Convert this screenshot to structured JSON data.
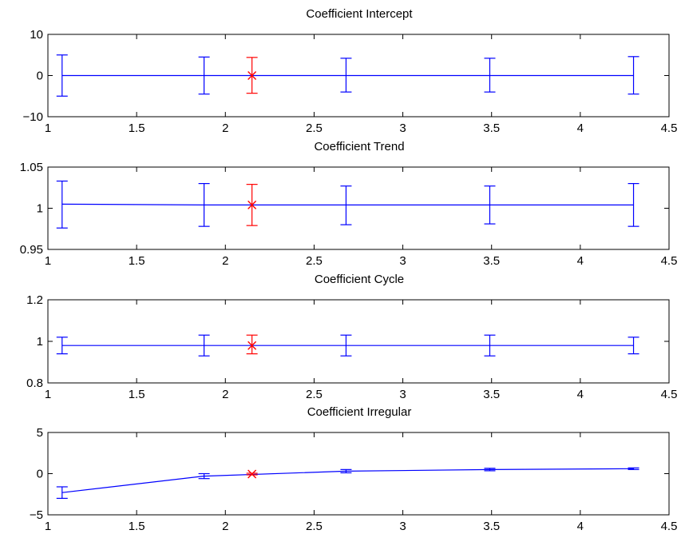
{
  "colors": {
    "series": "#0000ff",
    "highlight": "#ff0000",
    "axes": "#000000"
  },
  "chart_data": [
    {
      "type": "line",
      "title": "Coefficient Intercept",
      "xlim": [
        1,
        4.5
      ],
      "ylim": [
        -10,
        10
      ],
      "x_ticks": [
        "1",
        "1.5",
        "2",
        "2.5",
        "3",
        "3.5",
        "4",
        "4.5"
      ],
      "y_ticks": [
        "−10",
        "0",
        "10"
      ],
      "y_tick_values": [
        -10,
        0,
        10
      ],
      "grid": false,
      "series": [
        {
          "x": [
            1.08,
            1.88,
            2.68,
            3.49,
            4.3
          ],
          "y": [
            0,
            0,
            0,
            0,
            0
          ],
          "lower": [
            -5.0,
            -4.5,
            -4.0,
            -4.0,
            -4.5
          ],
          "upper": [
            5.0,
            4.5,
            4.2,
            4.2,
            4.6
          ]
        }
      ],
      "highlight": {
        "x": 2.15,
        "y": 0,
        "lower": -4.3,
        "upper": 4.4,
        "marker": "x"
      }
    },
    {
      "type": "line",
      "title": "Coefficient Trend",
      "xlim": [
        1,
        4.5
      ],
      "ylim": [
        0.95,
        1.05
      ],
      "x_ticks": [
        "1",
        "1.5",
        "2",
        "2.5",
        "3",
        "3.5",
        "4",
        "4.5"
      ],
      "y_ticks": [
        "0.95",
        "1",
        "1.05"
      ],
      "y_tick_values": [
        0.95,
        1.0,
        1.05
      ],
      "grid": false,
      "series": [
        {
          "x": [
            1.08,
            1.88,
            2.68,
            3.49,
            4.3
          ],
          "y": [
            1.005,
            1.004,
            1.004,
            1.004,
            1.004
          ],
          "lower": [
            0.976,
            0.978,
            0.98,
            0.981,
            0.978
          ],
          "upper": [
            1.033,
            1.03,
            1.027,
            1.027,
            1.03
          ]
        }
      ],
      "highlight": {
        "x": 2.15,
        "y": 1.004,
        "lower": 0.979,
        "upper": 1.029,
        "marker": "x"
      }
    },
    {
      "type": "line",
      "title": "Coefficient Cycle",
      "xlim": [
        1,
        4.5
      ],
      "ylim": [
        0.8,
        1.2
      ],
      "x_ticks": [
        "1",
        "1.5",
        "2",
        "2.5",
        "3",
        "3.5",
        "4",
        "4.5"
      ],
      "y_ticks": [
        "0.8",
        "1",
        "1.2"
      ],
      "y_tick_values": [
        0.8,
        1.0,
        1.2
      ],
      "grid": false,
      "series": [
        {
          "x": [
            1.08,
            1.88,
            2.68,
            3.49,
            4.3
          ],
          "y": [
            0.98,
            0.98,
            0.98,
            0.98,
            0.98
          ],
          "lower": [
            0.94,
            0.93,
            0.93,
            0.93,
            0.94
          ],
          "upper": [
            1.02,
            1.03,
            1.03,
            1.03,
            1.02
          ]
        }
      ],
      "highlight": {
        "x": 2.15,
        "y": 0.98,
        "lower": 0.94,
        "upper": 1.03,
        "marker": "x"
      }
    },
    {
      "type": "line",
      "title": "Coefficient Irregular",
      "xlim": [
        1,
        4.5
      ],
      "ylim": [
        -5,
        5
      ],
      "x_ticks": [
        "1",
        "1.5",
        "2",
        "2.5",
        "3",
        "3.5",
        "4",
        "4.5"
      ],
      "y_ticks": [
        "−5",
        "0",
        "5"
      ],
      "y_tick_values": [
        -5,
        0,
        5
      ],
      "grid": false,
      "series": [
        {
          "x": [
            1.08,
            1.88,
            2.68,
            3.49,
            4.3
          ],
          "y": [
            -2.3,
            -0.3,
            0.3,
            0.5,
            0.6
          ],
          "lower": [
            -3.0,
            -0.6,
            0.1,
            0.35,
            0.5
          ],
          "upper": [
            -1.6,
            0.0,
            0.5,
            0.65,
            0.7
          ]
        }
      ],
      "highlight": {
        "x": 2.15,
        "y": -0.05,
        "lower": -0.15,
        "upper": 0.05,
        "marker": "x"
      }
    }
  ]
}
